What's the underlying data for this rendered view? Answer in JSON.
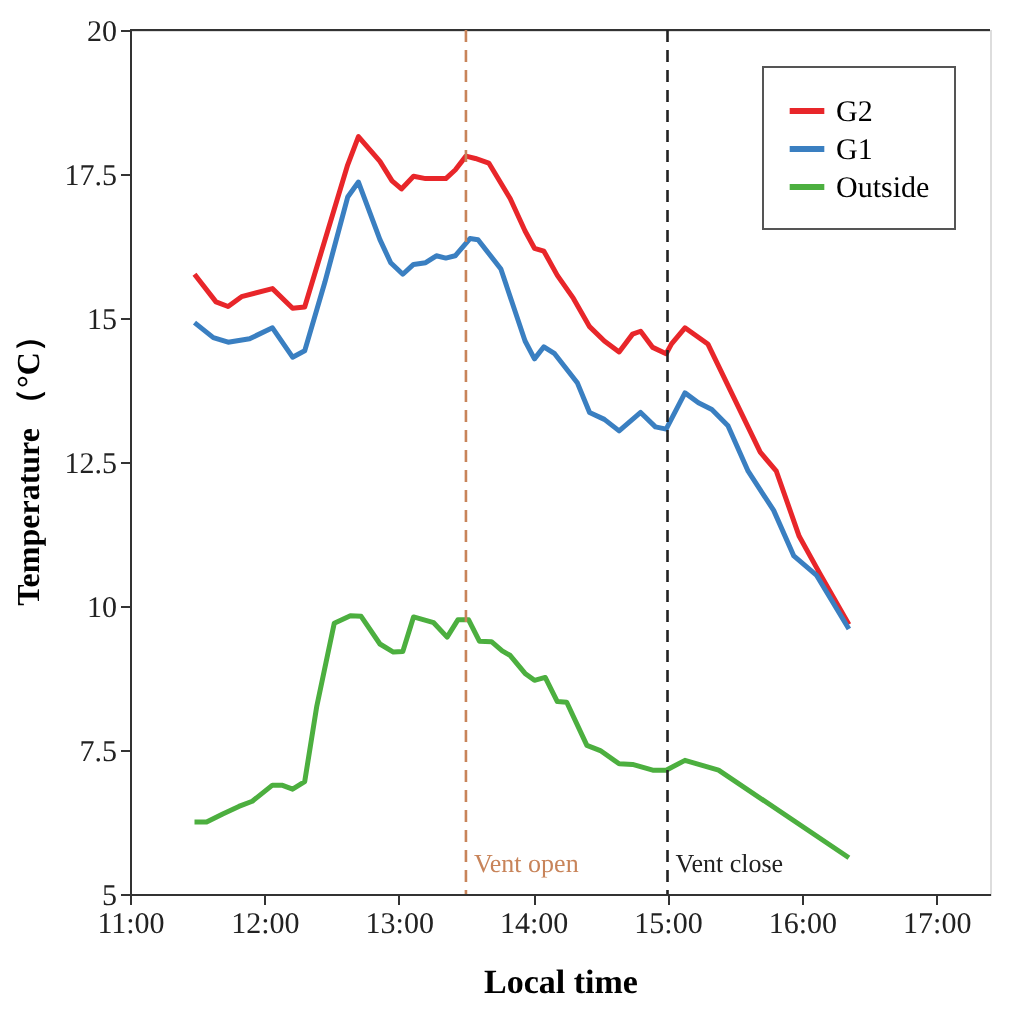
{
  "chart_data": {
    "type": "line",
    "xlabel": "Local time",
    "ylabel": "Temperature （°C）",
    "xlim": [
      11,
      17.4
    ],
    "ylim": [
      5,
      20
    ],
    "xticks": [
      {
        "value": 11,
        "label": "11:00"
      },
      {
        "value": 12,
        "label": "12:00"
      },
      {
        "value": 13,
        "label": "13:00"
      },
      {
        "value": 14,
        "label": "14:00"
      },
      {
        "value": 15,
        "label": "15:00"
      },
      {
        "value": 16,
        "label": "16:00"
      },
      {
        "value": 17,
        "label": "17:00"
      }
    ],
    "yticks": [
      5,
      7.5,
      10,
      12.5,
      15,
      17.5,
      20
    ],
    "grid": false,
    "legend": "top right",
    "line_style": "solid",
    "marker": "none",
    "ref_lines": [
      {
        "axis": "x",
        "value": 13.5,
        "label": "Vent open",
        "color": "#c8845a",
        "line_style": "dashed"
      },
      {
        "axis": "x",
        "value": 15,
        "label": "Vent close",
        "color": "#222222",
        "line_style": "dashed"
      }
    ],
    "series": [
      {
        "name": "G2",
        "color": "#e8262a",
        "x": [
          11.48,
          11.64,
          11.73,
          11.83,
          12.06,
          12.21,
          12.3,
          12.62,
          12.7,
          12.86,
          12.95,
          13.02,
          13.11,
          13.2,
          13.35,
          13.42,
          13.5,
          13.57,
          13.67,
          13.83,
          13.94,
          14.01,
          14.08,
          14.18,
          14.3,
          14.42,
          14.53,
          14.64,
          14.74,
          14.8,
          14.89,
          14.99,
          15.03,
          15.13,
          15.3,
          15.69,
          15.81,
          15.98,
          16.13,
          16.35
        ],
        "values": [
          15.76,
          15.28,
          15.2,
          15.37,
          15.51,
          15.17,
          15.19,
          17.66,
          18.15,
          17.72,
          17.38,
          17.24,
          17.46,
          17.42,
          17.42,
          17.57,
          17.81,
          17.77,
          17.69,
          17.07,
          16.51,
          16.21,
          16.16,
          15.74,
          15.34,
          14.85,
          14.6,
          14.41,
          14.72,
          14.77,
          14.49,
          14.38,
          14.55,
          14.83,
          14.55,
          12.67,
          12.34,
          11.21,
          10.58,
          9.68
        ]
      },
      {
        "name": "G1",
        "color": "#3a7fc1",
        "x": [
          11.48,
          11.62,
          11.73,
          11.89,
          12.06,
          12.21,
          12.3,
          12.45,
          12.62,
          12.7,
          12.86,
          12.94,
          13.03,
          13.11,
          13.2,
          13.28,
          13.35,
          13.42,
          13.53,
          13.59,
          13.76,
          13.94,
          14.01,
          14.08,
          14.16,
          14.33,
          14.42,
          14.53,
          14.64,
          14.8,
          14.91,
          14.99,
          15.13,
          15.23,
          15.33,
          15.45,
          15.6,
          15.79,
          15.94,
          16.11,
          16.35
        ],
        "values": [
          14.92,
          14.66,
          14.58,
          14.64,
          14.83,
          14.32,
          14.43,
          15.62,
          17.1,
          17.36,
          16.36,
          15.96,
          15.76,
          15.93,
          15.96,
          16.08,
          16.04,
          16.08,
          16.38,
          16.36,
          15.85,
          14.6,
          14.29,
          14.5,
          14.38,
          13.87,
          13.36,
          13.24,
          13.04,
          13.36,
          13.11,
          13.07,
          13.7,
          13.53,
          13.41,
          13.13,
          12.34,
          11.66,
          10.87,
          10.53,
          9.6
        ]
      },
      {
        "name": "Outside",
        "color": "#4caf3f",
        "x": [
          11.48,
          11.57,
          11.69,
          11.81,
          11.91,
          12.06,
          12.13,
          12.21,
          12.3,
          12.39,
          12.52,
          12.64,
          12.72,
          12.86,
          12.96,
          13.03,
          13.11,
          13.26,
          13.36,
          13.44,
          13.52,
          13.6,
          13.69,
          13.77,
          13.83,
          13.94,
          14.01,
          14.09,
          14.18,
          14.25,
          14.4,
          14.5,
          14.64,
          14.74,
          14.89,
          14.99,
          15.13,
          15.38,
          16.35
        ],
        "values": [
          6.25,
          6.25,
          6.39,
          6.52,
          6.61,
          6.89,
          6.89,
          6.82,
          6.95,
          8.26,
          9.7,
          9.83,
          9.82,
          9.34,
          9.2,
          9.21,
          9.81,
          9.71,
          9.46,
          9.76,
          9.76,
          9.39,
          9.38,
          9.22,
          9.14,
          8.83,
          8.71,
          8.76,
          8.34,
          8.33,
          7.58,
          7.49,
          7.26,
          7.25,
          7.15,
          7.15,
          7.32,
          7.15,
          5.63
        ]
      }
    ]
  }
}
